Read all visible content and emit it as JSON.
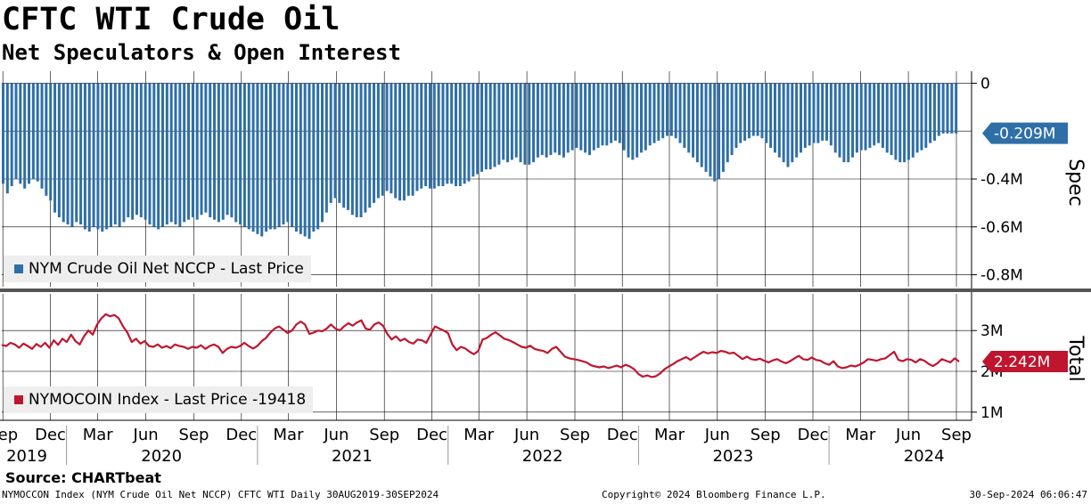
{
  "header": {
    "title": "CFTC WTI Crude Oil",
    "subtitle": "Net Speculators & Open Interest"
  },
  "colors": {
    "bar": "#2e6fa7",
    "line": "#c0152f",
    "grid": "#000000",
    "divider": "#555555"
  },
  "chart_data": [
    {
      "type": "bar",
      "panel": "top",
      "legend": "NYM Crude Oil Net NCCP - Last Price",
      "axis_title": "Spec",
      "ylim": [
        -0.85,
        0.05
      ],
      "yticks": [
        {
          "value": 0,
          "label": "0"
        },
        {
          "value": -0.4,
          "label": "-0.4M"
        },
        {
          "value": -0.6,
          "label": "-0.6M"
        },
        {
          "value": -0.8,
          "label": "-0.8M"
        }
      ],
      "last_value_label": "-0.209M",
      "last_value": -0.209,
      "unit": "M",
      "x_start": "2019-08-30",
      "x_end": "2024-09-30",
      "frequency": "weekly",
      "values": [
        -0.42,
        -0.46,
        -0.43,
        -0.4,
        -0.42,
        -0.44,
        -0.42,
        -0.4,
        -0.41,
        -0.44,
        -0.47,
        -0.49,
        -0.54,
        -0.56,
        -0.58,
        -0.59,
        -0.6,
        -0.58,
        -0.59,
        -0.61,
        -0.62,
        -0.6,
        -0.61,
        -0.62,
        -0.61,
        -0.6,
        -0.59,
        -0.6,
        -0.58,
        -0.56,
        -0.57,
        -0.55,
        -0.56,
        -0.57,
        -0.59,
        -0.6,
        -0.61,
        -0.6,
        -0.59,
        -0.58,
        -0.59,
        -0.6,
        -0.58,
        -0.57,
        -0.56,
        -0.57,
        -0.55,
        -0.54,
        -0.56,
        -0.57,
        -0.58,
        -0.57,
        -0.55,
        -0.56,
        -0.58,
        -0.59,
        -0.6,
        -0.61,
        -0.62,
        -0.63,
        -0.64,
        -0.62,
        -0.61,
        -0.61,
        -0.6,
        -0.59,
        -0.58,
        -0.6,
        -0.62,
        -0.63,
        -0.64,
        -0.65,
        -0.62,
        -0.61,
        -0.58,
        -0.54,
        -0.5,
        -0.48,
        -0.5,
        -0.52,
        -0.53,
        -0.55,
        -0.56,
        -0.56,
        -0.54,
        -0.52,
        -0.5,
        -0.48,
        -0.47,
        -0.45,
        -0.46,
        -0.48,
        -0.49,
        -0.49,
        -0.47,
        -0.47,
        -0.45,
        -0.44,
        -0.43,
        -0.44,
        -0.44,
        -0.43,
        -0.43,
        -0.42,
        -0.42,
        -0.43,
        -0.43,
        -0.42,
        -0.41,
        -0.39,
        -0.38,
        -0.37,
        -0.36,
        -0.36,
        -0.35,
        -0.34,
        -0.32,
        -0.33,
        -0.32,
        -0.31,
        -0.33,
        -0.34,
        -0.34,
        -0.33,
        -0.31,
        -0.3,
        -0.31,
        -0.3,
        -0.29,
        -0.3,
        -0.31,
        -0.29,
        -0.28,
        -0.27,
        -0.28,
        -0.29,
        -0.3,
        -0.28,
        -0.27,
        -0.26,
        -0.26,
        -0.25,
        -0.24,
        -0.25,
        -0.28,
        -0.31,
        -0.32,
        -0.31,
        -0.29,
        -0.28,
        -0.26,
        -0.25,
        -0.24,
        -0.23,
        -0.22,
        -0.22,
        -0.23,
        -0.25,
        -0.27,
        -0.29,
        -0.31,
        -0.33,
        -0.35,
        -0.37,
        -0.39,
        -0.41,
        -0.4,
        -0.37,
        -0.33,
        -0.3,
        -0.27,
        -0.25,
        -0.24,
        -0.23,
        -0.22,
        -0.22,
        -0.23,
        -0.25,
        -0.27,
        -0.29,
        -0.31,
        -0.33,
        -0.35,
        -0.33,
        -0.31,
        -0.29,
        -0.27,
        -0.26,
        -0.25,
        -0.25,
        -0.24,
        -0.24,
        -0.26,
        -0.29,
        -0.31,
        -0.33,
        -0.33,
        -0.31,
        -0.29,
        -0.28,
        -0.28,
        -0.27,
        -0.26,
        -0.25,
        -0.27,
        -0.29,
        -0.3,
        -0.32,
        -0.33,
        -0.33,
        -0.32,
        -0.31,
        -0.29,
        -0.28,
        -0.27,
        -0.25,
        -0.24,
        -0.22,
        -0.21,
        -0.21,
        -0.21,
        -0.21
      ]
    },
    {
      "type": "line",
      "panel": "bottom",
      "legend": "NYMOCOIN Index - Last Price -19418",
      "axis_title": "Total",
      "ylim": [
        0.8,
        3.9
      ],
      "yticks": [
        {
          "value": 3,
          "label": "3M"
        },
        {
          "value": 2,
          "label": "2M"
        },
        {
          "value": 1,
          "label": "1M"
        }
      ],
      "last_value_label": "2.242M",
      "last_value": 2.242,
      "unit": "M",
      "x_start": "2019-08-30",
      "x_end": "2024-09-30",
      "frequency": "weekly",
      "values": [
        2.65,
        2.62,
        2.7,
        2.66,
        2.58,
        2.68,
        2.62,
        2.55,
        2.67,
        2.6,
        2.7,
        2.58,
        2.76,
        2.65,
        2.8,
        2.72,
        2.9,
        2.74,
        2.66,
        2.86,
        3.0,
        2.9,
        3.15,
        3.3,
        3.4,
        3.35,
        3.38,
        3.3,
        3.1,
        2.95,
        2.72,
        2.8,
        2.68,
        2.74,
        2.62,
        2.6,
        2.66,
        2.58,
        2.62,
        2.57,
        2.66,
        2.62,
        2.6,
        2.55,
        2.6,
        2.58,
        2.64,
        2.55,
        2.62,
        2.66,
        2.6,
        2.45,
        2.55,
        2.6,
        2.58,
        2.62,
        2.7,
        2.62,
        2.56,
        2.62,
        2.74,
        2.82,
        2.95,
        3.05,
        3.1,
        3.02,
        2.94,
        3.0,
        3.15,
        3.22,
        3.15,
        2.92,
        2.95,
        3.0,
        2.98,
        3.05,
        3.15,
        3.05,
        3.0,
        3.1,
        3.18,
        3.12,
        3.2,
        3.25,
        3.05,
        3.02,
        3.15,
        3.2,
        3.12,
        2.92,
        2.78,
        2.86,
        2.75,
        2.8,
        2.72,
        2.68,
        2.78,
        2.76,
        2.7,
        2.9,
        3.1,
        3.05,
        3.0,
        2.94,
        2.66,
        2.52,
        2.6,
        2.56,
        2.48,
        2.42,
        2.5,
        2.78,
        2.82,
        2.9,
        2.96,
        2.88,
        2.8,
        2.77,
        2.72,
        2.66,
        2.6,
        2.58,
        2.63,
        2.55,
        2.52,
        2.5,
        2.45,
        2.55,
        2.6,
        2.48,
        2.36,
        2.32,
        2.3,
        2.28,
        2.25,
        2.22,
        2.15,
        2.12,
        2.1,
        2.12,
        2.08,
        2.11,
        2.14,
        2.1,
        2.16,
        2.12,
        2.05,
        1.93,
        1.87,
        1.9,
        1.86,
        1.88,
        1.95,
        2.05,
        2.12,
        2.18,
        2.25,
        2.3,
        2.35,
        2.28,
        2.35,
        2.42,
        2.48,
        2.44,
        2.47,
        2.45,
        2.5,
        2.48,
        2.44,
        2.46,
        2.38,
        2.3,
        2.36,
        2.3,
        2.28,
        2.31,
        2.26,
        2.22,
        2.27,
        2.3,
        2.24,
        2.2,
        2.25,
        2.32,
        2.38,
        2.3,
        2.28,
        2.34,
        2.28,
        2.26,
        2.2,
        2.16,
        2.25,
        2.12,
        2.08,
        2.1,
        2.14,
        2.12,
        2.16,
        2.22,
        2.3,
        2.28,
        2.26,
        2.3,
        2.32,
        2.4,
        2.48,
        2.28,
        2.25,
        2.3,
        2.28,
        2.22,
        2.3,
        2.26,
        2.18,
        2.13,
        2.2,
        2.3,
        2.26,
        2.22,
        2.32,
        2.24
      ]
    }
  ],
  "x_axis": {
    "months": [
      {
        "label": "Sep",
        "date": "2019-09-01"
      },
      {
        "label": "Dec",
        "date": "2019-12-01"
      },
      {
        "label": "Mar",
        "date": "2020-03-01"
      },
      {
        "label": "Jun",
        "date": "2020-06-01"
      },
      {
        "label": "Sep",
        "date": "2020-09-01"
      },
      {
        "label": "Dec",
        "date": "2020-12-01"
      },
      {
        "label": "Mar",
        "date": "2021-03-01"
      },
      {
        "label": "Jun",
        "date": "2021-06-01"
      },
      {
        "label": "Sep",
        "date": "2021-09-01"
      },
      {
        "label": "Dec",
        "date": "2021-12-01"
      },
      {
        "label": "Mar",
        "date": "2022-03-01"
      },
      {
        "label": "Jun",
        "date": "2022-06-01"
      },
      {
        "label": "Sep",
        "date": "2022-09-01"
      },
      {
        "label": "Dec",
        "date": "2022-12-01"
      },
      {
        "label": "Mar",
        "date": "2023-03-01"
      },
      {
        "label": "Jun",
        "date": "2023-06-01"
      },
      {
        "label": "Sep",
        "date": "2023-09-01"
      },
      {
        "label": "Dec",
        "date": "2023-12-01"
      },
      {
        "label": "Mar",
        "date": "2024-03-01"
      },
      {
        "label": "Jun",
        "date": "2024-06-01"
      },
      {
        "label": "Sep",
        "date": "2024-09-01"
      }
    ],
    "years": [
      {
        "label": "2019",
        "date": "2019-10-01"
      },
      {
        "label": "2020",
        "date": "2020-07-01"
      },
      {
        "label": "2021",
        "date": "2021-07-01"
      },
      {
        "label": "2022",
        "date": "2022-07-01"
      },
      {
        "label": "2023",
        "date": "2023-07-01"
      },
      {
        "label": "2024",
        "date": "2024-07-01"
      }
    ],
    "year_boundaries": [
      "2020-01-01",
      "2021-01-01",
      "2022-01-01",
      "2023-01-01",
      "2024-01-01"
    ]
  },
  "footer": {
    "source": "Source: CHARTbeat",
    "left": "NYMOCCON Index (NYM Crude Oil Net NCCP) CFTC WTI  Daily 30AUG2019-30SEP2024",
    "center": "Copyright© 2024 Bloomberg Finance L.P.",
    "right": "30-Sep-2024 06:06:47"
  }
}
